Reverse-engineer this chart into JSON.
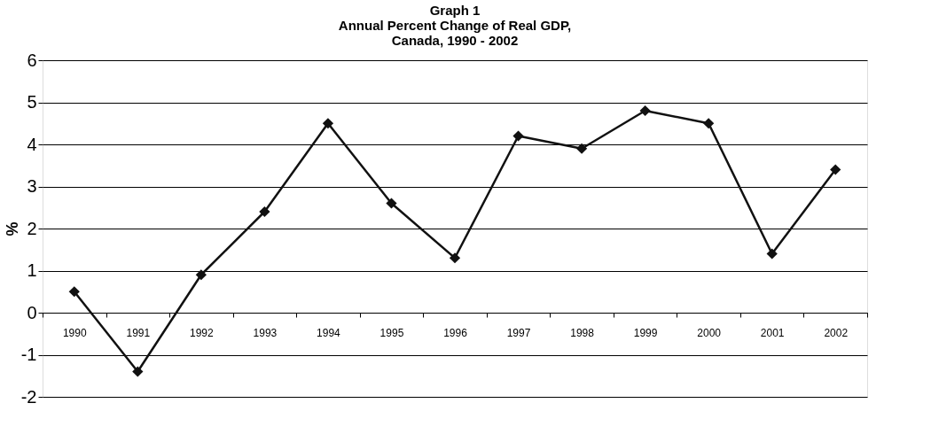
{
  "chart_data": {
    "type": "line",
    "title": [
      "Graph 1",
      "Annual Percent Change of Real GDP,",
      "Canada, 1990 - 2002"
    ],
    "ylabel": "%",
    "categories": [
      "1990",
      "1991",
      "1992",
      "1993",
      "1994",
      "1995",
      "1996",
      "1997",
      "1998",
      "1999",
      "2000",
      "2001",
      "2002"
    ],
    "series": [
      {
        "color": "#111111",
        "values": [
          0.5,
          -1.4,
          0.9,
          2.4,
          4.5,
          2.6,
          1.3,
          4.2,
          3.9,
          4.8,
          4.5,
          1.4,
          3.4
        ]
      }
    ],
    "ylim": [
      -2,
      6
    ],
    "yticks": [
      -2,
      -1,
      0,
      1,
      2,
      3,
      4,
      5,
      6
    ],
    "grid": "y",
    "marker": "diamond",
    "line_style": "solid"
  }
}
